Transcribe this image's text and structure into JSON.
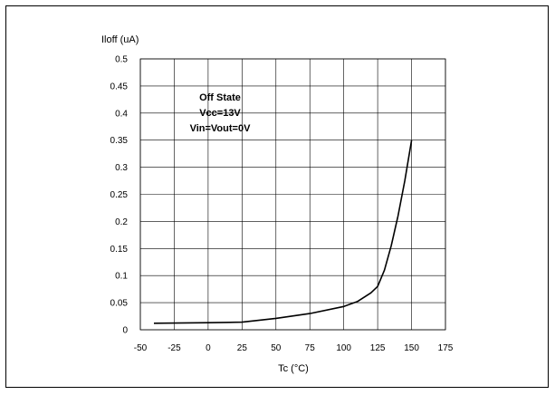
{
  "chart_data": {
    "type": "line",
    "ylabel": "Iloff (uA)",
    "xlabel": "Tc (°C)",
    "xlim": [
      -50,
      175
    ],
    "ylim": [
      0,
      0.5
    ],
    "x_ticks": [
      -50,
      -25,
      0,
      25,
      50,
      75,
      100,
      125,
      150,
      175
    ],
    "y_ticks": [
      "0",
      "0.05",
      "0.1",
      "0.15",
      "0.2",
      "0.25",
      "0.3",
      "0.35",
      "0.4",
      "0.45",
      "0.5"
    ],
    "grid": true,
    "annotation": [
      "Off State",
      "Vcc=13V",
      "Vin=Vout=0V"
    ],
    "series": [
      {
        "x": [
          -40,
          0,
          25,
          50,
          75,
          100,
          110,
          120,
          125,
          130,
          135,
          140,
          145,
          150
        ],
        "y": [
          0.012,
          0.013,
          0.014,
          0.021,
          0.03,
          0.043,
          0.052,
          0.068,
          0.08,
          0.11,
          0.155,
          0.21,
          0.275,
          0.35
        ]
      }
    ],
    "colors": {
      "line": "#000000",
      "grid": "#000000"
    }
  }
}
